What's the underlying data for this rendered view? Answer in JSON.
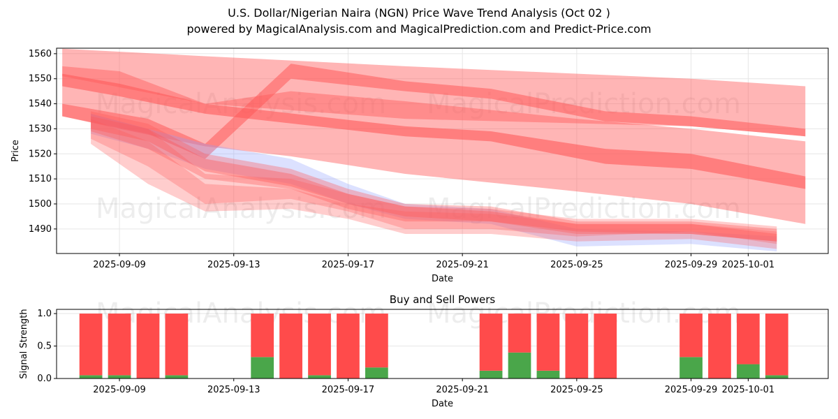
{
  "title_line1": "U.S. Dollar/Nigerian Naira (NGN) Price Wave Trend Analysis (Oct 02 )",
  "title_line2": "powered by MagicalAnalysis.com and MagicalPrediction.com and Predict-Price.com",
  "watermarks": [
    "MagicalAnalysis.com",
    "MagicalPrediction.com"
  ],
  "colors": {
    "band": "#ff5a5a",
    "blue_band": "#8c9cff",
    "sell": "#ff4b4b",
    "buy": "#4aa64a"
  },
  "chart_data": [
    {
      "type": "area",
      "title": "",
      "xlabel": "Date",
      "ylabel": "Price",
      "xlim": [
        "2025-09-06.8",
        "2025-10-03.8"
      ],
      "ylim": [
        1480.2,
        1562.2
      ],
      "xticks": [
        "2025-09-09",
        "2025-09-13",
        "2025-09-17",
        "2025-09-21",
        "2025-09-25",
        "2025-09-29",
        "2025-10-01"
      ],
      "yticks": [
        1490,
        1500,
        1510,
        1520,
        1530,
        1540,
        1550,
        1560
      ],
      "grid": true,
      "bands": [
        {
          "name": "wide-band-1",
          "opacity": 0.45,
          "points": [
            [
              "2025-09-07",
              1562,
              1551
            ],
            [
              "2025-09-12",
              1559,
              1540
            ],
            [
              "2025-09-19",
              1555,
              1534
            ],
            [
              "2025-09-29",
              1550,
              1531
            ],
            [
              "2025-10-03",
              1547,
              1527
            ]
          ]
        },
        {
          "name": "wide-band-2",
          "opacity": 0.45,
          "points": [
            [
              "2025-09-07",
              1555,
              1535
            ],
            [
              "2025-09-09",
              1553,
              1530
            ],
            [
              "2025-09-12",
              1540,
              1523
            ],
            [
              "2025-09-15",
              1545,
              1519
            ],
            [
              "2025-09-19",
              1541,
              1512
            ],
            [
              "2025-09-25",
              1534,
              1505
            ],
            [
              "2025-09-29",
              1530,
              1500
            ],
            [
              "2025-10-03",
              1525,
              1492
            ]
          ]
        },
        {
          "name": "dark-band-1",
          "opacity": 0.6,
          "points": [
            [
              "2025-09-07",
              1552,
              1547
            ],
            [
              "2025-09-09",
              1548,
              1543
            ],
            [
              "2025-09-12",
              1540,
              1536
            ],
            [
              "2025-09-19",
              1531,
              1527
            ],
            [
              "2025-09-22",
              1529,
              1525
            ],
            [
              "2025-09-26",
              1522,
              1516
            ],
            [
              "2025-09-29",
              1520,
              1514
            ],
            [
              "2025-10-03",
              1511,
              1506
            ]
          ]
        },
        {
          "name": "dark-band-2",
          "opacity": 0.55,
          "points": [
            [
              "2025-09-07",
              1540,
              1535
            ],
            [
              "2025-09-10",
              1534,
              1528
            ],
            [
              "2025-09-12",
              1524,
              1518
            ],
            [
              "2025-09-15",
              1556,
              1550
            ],
            [
              "2025-09-19",
              1549,
              1545
            ],
            [
              "2025-09-22",
              1546,
              1542
            ],
            [
              "2025-09-26",
              1537,
              1533
            ],
            [
              "2025-09-29",
              1535,
              1531
            ],
            [
              "2025-10-03",
              1530,
              1527
            ]
          ]
        },
        {
          "name": "blue-band",
          "opacity": 0.3,
          "blue": true,
          "points": [
            [
              "2025-09-08",
              1536,
              1528
            ],
            [
              "2025-09-10",
              1530,
              1522
            ],
            [
              "2025-09-12",
              1524,
              1514
            ],
            [
              "2025-09-15",
              1518,
              1508
            ],
            [
              "2025-09-17",
              1508,
              1500
            ],
            [
              "2025-09-19",
              1500,
              1494
            ],
            [
              "2025-09-22",
              1498,
              1492
            ],
            [
              "2025-09-25",
              1490,
              1483
            ],
            [
              "2025-09-29",
              1489,
              1484
            ],
            [
              "2025-10-02",
              1487,
              1481
            ]
          ]
        },
        {
          "name": "cluster-band-1",
          "opacity": 0.3,
          "points": [
            [
              "2025-09-08",
              1536,
              1526
            ],
            [
              "2025-09-10",
              1530,
              1515
            ],
            [
              "2025-09-12",
              1512,
              1500
            ],
            [
              "2025-09-15",
              1510,
              1502
            ],
            [
              "2025-09-17",
              1504,
              1497
            ],
            [
              "2025-09-19",
              1499,
              1490
            ],
            [
              "2025-09-22",
              1498,
              1490
            ],
            [
              "2025-09-25",
              1494,
              1487
            ],
            [
              "2025-09-29",
              1494,
              1489
            ],
            [
              "2025-10-02",
              1491,
              1484
            ]
          ]
        },
        {
          "name": "cluster-band-2",
          "opacity": 0.3,
          "points": [
            [
              "2025-09-08",
              1534,
              1524
            ],
            [
              "2025-09-10",
              1525,
              1508
            ],
            [
              "2025-09-12",
              1508,
              1497
            ],
            [
              "2025-09-15",
              1506,
              1498
            ],
            [
              "2025-09-17",
              1500,
              1494
            ],
            [
              "2025-09-19",
              1497,
              1488
            ],
            [
              "2025-09-22",
              1496,
              1488
            ],
            [
              "2025-09-25",
              1492,
              1485
            ],
            [
              "2025-09-29",
              1492,
              1486
            ],
            [
              "2025-10-02",
              1489,
              1482
            ]
          ]
        },
        {
          "name": "cluster-band-3",
          "opacity": 0.35,
          "points": [
            [
              "2025-09-08",
              1537,
              1529
            ],
            [
              "2025-09-10",
              1532,
              1522
            ],
            [
              "2025-09-12",
              1520,
              1510
            ],
            [
              "2025-09-15",
              1514,
              1506
            ],
            [
              "2025-09-17",
              1506,
              1498
            ],
            [
              "2025-09-19",
              1500,
              1493
            ],
            [
              "2025-09-22",
              1499,
              1493
            ],
            [
              "2025-09-25",
              1493,
              1488
            ],
            [
              "2025-09-29",
              1493,
              1488
            ],
            [
              "2025-10-02",
              1490,
              1485
            ]
          ]
        },
        {
          "name": "cluster-band-4",
          "opacity": 0.4,
          "points": [
            [
              "2025-09-08",
              1535,
              1530
            ],
            [
              "2025-09-10",
              1530,
              1525
            ],
            [
              "2025-09-12",
              1518,
              1513
            ],
            [
              "2025-09-15",
              1512,
              1507
            ],
            [
              "2025-09-17",
              1504,
              1500
            ],
            [
              "2025-09-19",
              1499,
              1495
            ],
            [
              "2025-09-22",
              1497,
              1493
            ],
            [
              "2025-09-25",
              1492,
              1489
            ],
            [
              "2025-09-29",
              1492,
              1488
            ],
            [
              "2025-10-02",
              1488,
              1485
            ]
          ]
        }
      ]
    },
    {
      "type": "bar",
      "title": "Buy and Sell Powers",
      "xlabel": "Date",
      "ylabel": "Signal Strength",
      "ylim": [
        0,
        1.065
      ],
      "yticks": [
        "0.0",
        "0.5",
        "1.0"
      ],
      "xticks": [
        "2025-09-09",
        "2025-09-13",
        "2025-09-17",
        "2025-09-21",
        "2025-09-25",
        "2025-09-29",
        "2025-10-01"
      ],
      "categories": [
        "2025-09-08",
        "2025-09-09",
        "2025-09-10",
        "2025-09-11",
        "2025-09-14",
        "2025-09-15",
        "2025-09-16",
        "2025-09-17",
        "2025-09-18",
        "2025-09-22",
        "2025-09-23",
        "2025-09-24",
        "2025-09-25",
        "2025-09-26",
        "2025-09-29",
        "2025-09-30",
        "2025-10-01",
        "2025-10-02"
      ],
      "series": [
        {
          "name": "Buy",
          "values": [
            0.05,
            0.05,
            0,
            0.05,
            0.33,
            0,
            0.05,
            0,
            0.17,
            0.12,
            0.4,
            0.12,
            0,
            0,
            0.33,
            0,
            0.22,
            0.05
          ]
        },
        {
          "name": "Sell",
          "values": [
            0.95,
            0.95,
            1,
            0.95,
            0.67,
            1,
            0.95,
            1,
            0.83,
            0.88,
            0.6,
            0.88,
            1,
            1,
            0.67,
            1,
            0.78,
            0.95
          ]
        }
      ]
    }
  ]
}
